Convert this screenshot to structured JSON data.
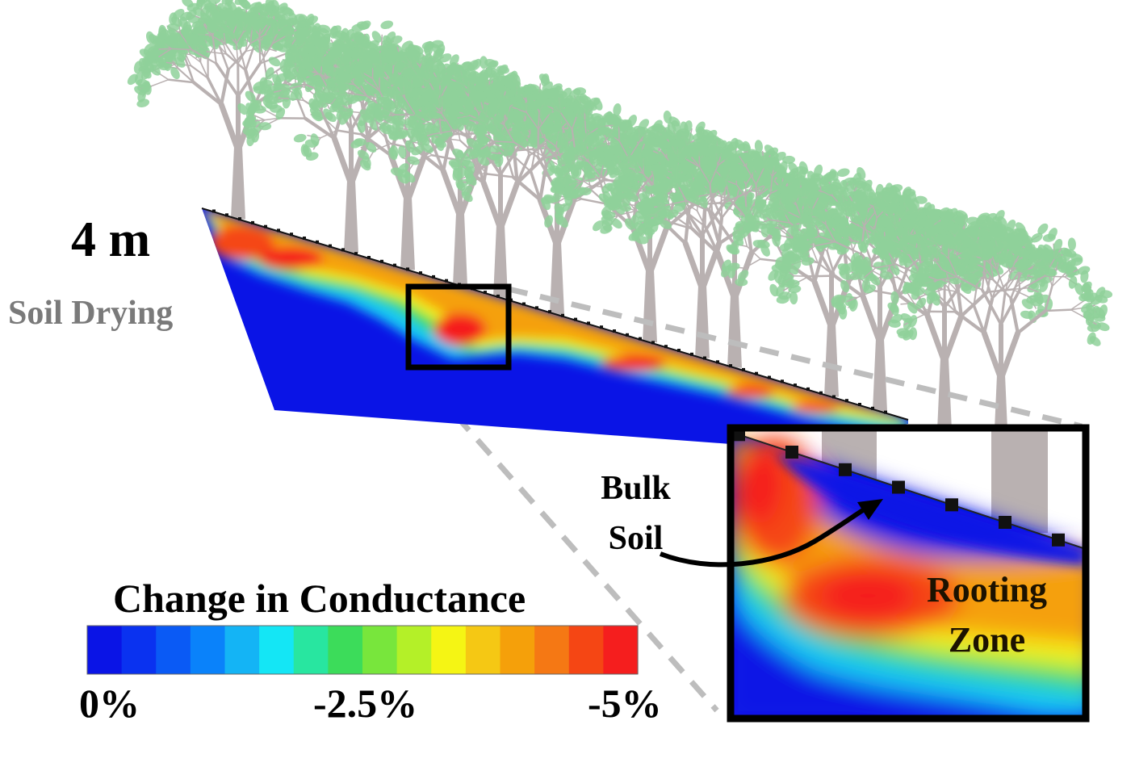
{
  "labels": {
    "scale": "4 m",
    "process": "Soil Drying",
    "bulk_soil_line1": "Bulk",
    "bulk_soil_line2": "Soil",
    "rooting_zone_line1": "Rooting",
    "rooting_zone_line2": "Zone"
  },
  "colorbar": {
    "title": "Change in Conductance",
    "ticks": [
      "0%",
      "-2.5%",
      "-5%"
    ],
    "range": [
      0,
      -5
    ],
    "steps": [
      "#0a14e6",
      "#0a32f0",
      "#0a5af5",
      "#0a82fa",
      "#14b4f5",
      "#14e6f5",
      "#28e6a0",
      "#3cdc5a",
      "#78e63c",
      "#b4f028",
      "#f5f514",
      "#f5c814",
      "#f5a00a",
      "#f57814",
      "#f54614",
      "#f51e1e"
    ]
  },
  "colors": {
    "soil_background": "#0a14e6",
    "drying_core": "#f51e1e",
    "trunk": "#b9b1b1",
    "leaf": "#8fd19a",
    "callout_outline": "#000000",
    "guide_line": "#bdbdbd",
    "process_label": "#7a7a7a"
  },
  "icons": [
    "tree-icon",
    "electrode-icon",
    "curved-arrow-icon"
  ]
}
